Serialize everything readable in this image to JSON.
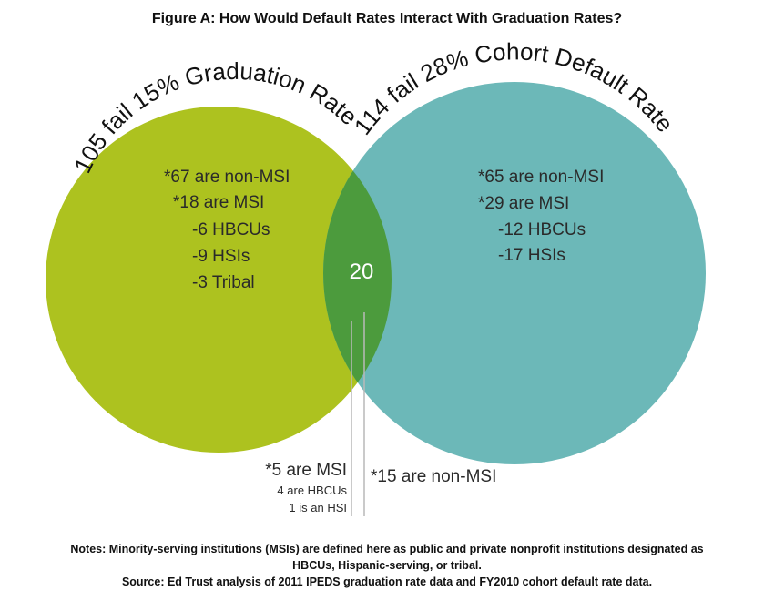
{
  "title": "Figure A: How Would Default Rates Interact With Graduation Rates?",
  "colors": {
    "left_circle": "#adc21f",
    "right_circle": "#6cb8b8",
    "overlap": "#4c9b3d",
    "leader_line": "#b9b9b9"
  },
  "left_set": {
    "label": "105 fail 15% Graduation Rate",
    "lines": [
      "*67 are non-MSI",
      "*18 are MSI",
      "-6 HBCUs",
      "-9 HSIs",
      "-3 Tribal"
    ]
  },
  "right_set": {
    "label": "114 fail 28% Cohort Default Rate",
    "lines": [
      "*65 are non-MSI",
      "*29 are MSI",
      "-12 HBCUs",
      "-17 HSIs"
    ]
  },
  "overlap": {
    "count": "20",
    "msi": "*5 are MSI",
    "msi_detail": [
      "4 are HBCUs",
      "1 is an HSI"
    ],
    "non_msi": "*15 are non-MSI"
  },
  "notes": [
    "Notes: Minority-serving institutions (MSIs) are defined here as public and private nonprofit institutions designated as",
    "HBCUs, Hispanic-serving, or tribal.",
    "Source: Ed Trust analysis of 2011 IPEDS graduation rate data and FY2010 cohort default rate data."
  ]
}
